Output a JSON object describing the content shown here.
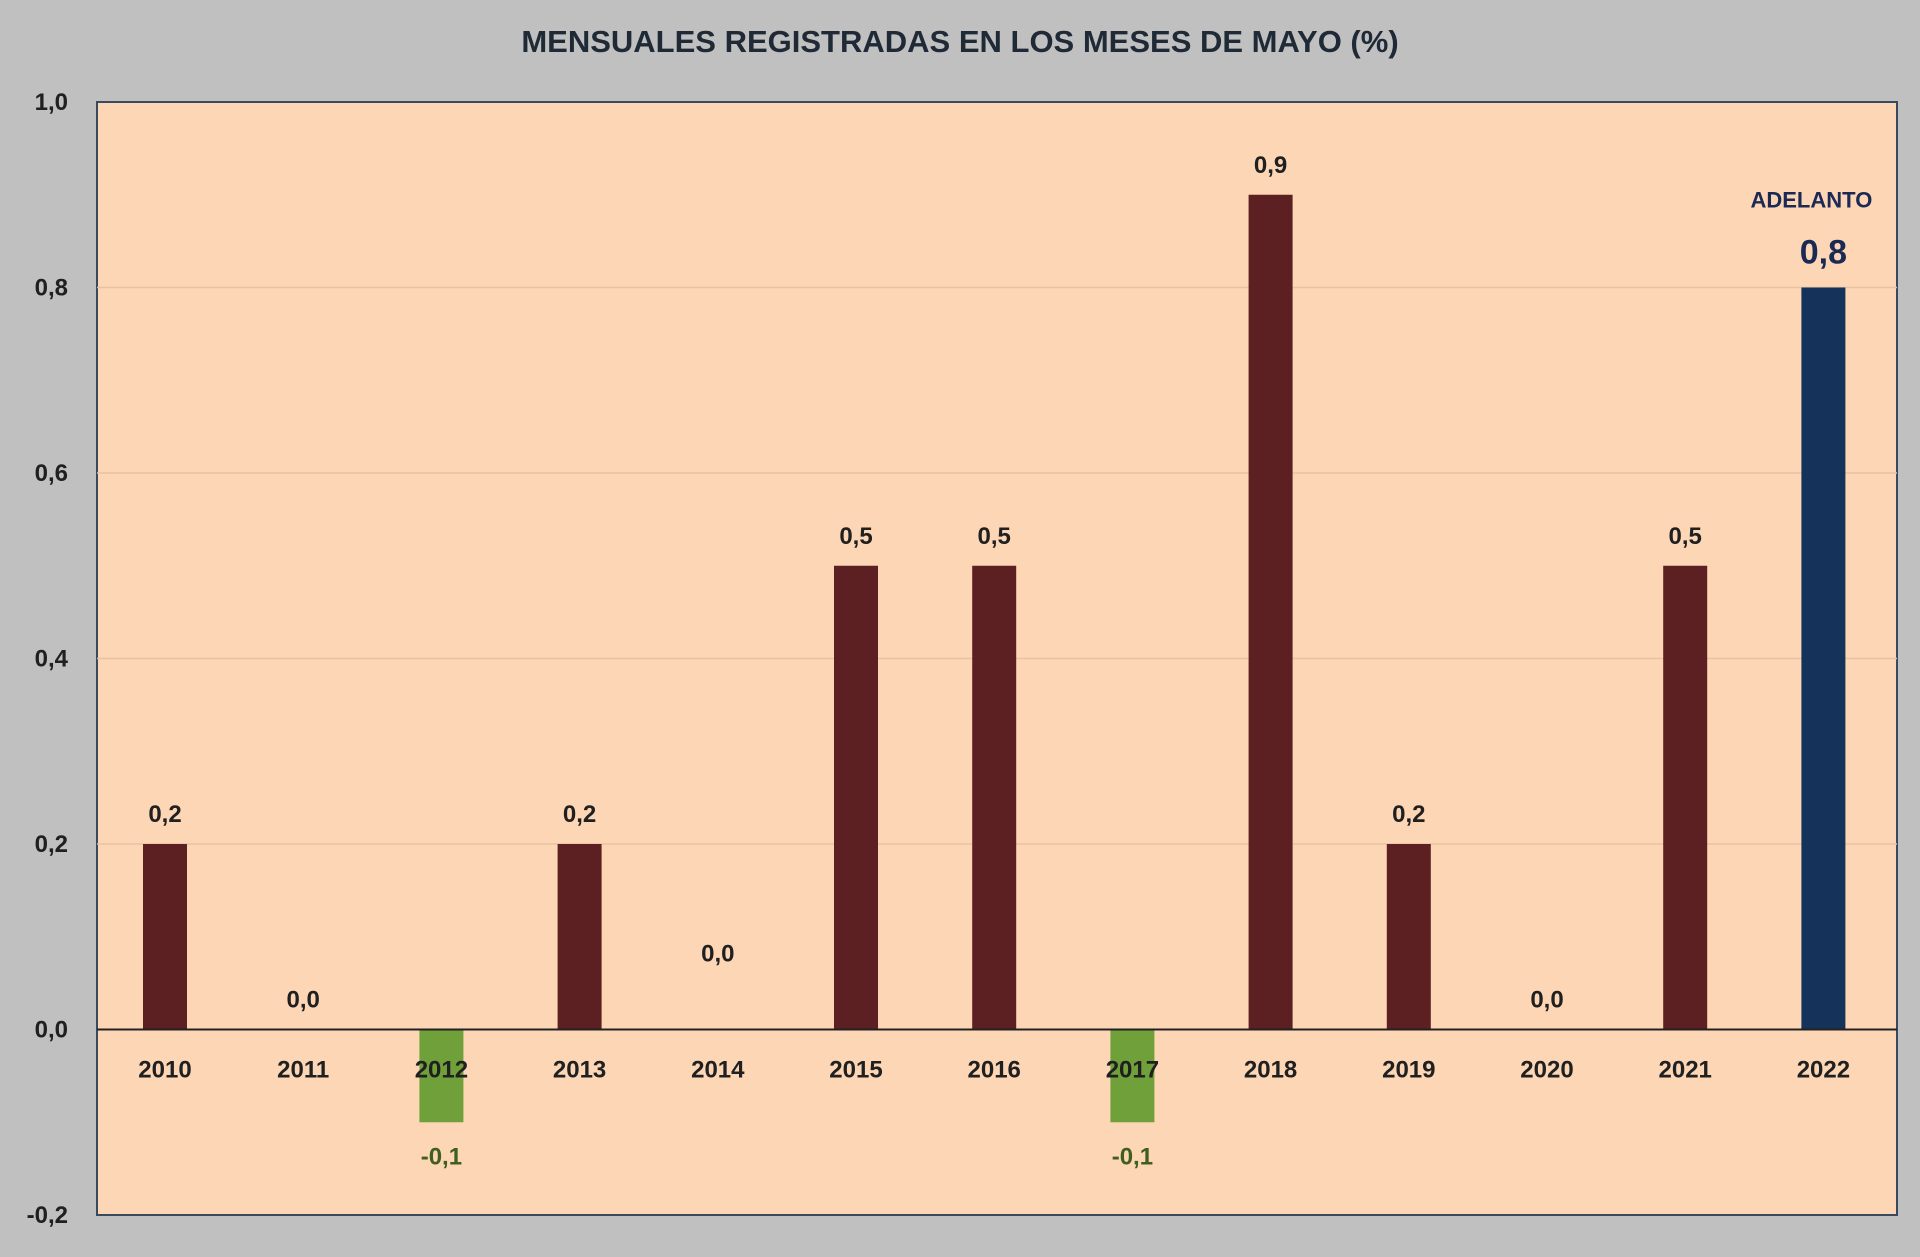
{
  "chart_data": {
    "type": "bar",
    "title": "MENSUALES REGISTRADAS EN LOS MESES DE MAYO (%)",
    "xlabel": "",
    "ylabel": "",
    "categories": [
      "2010",
      "2011",
      "2012",
      "2013",
      "2014",
      "2015",
      "2016",
      "2017",
      "2018",
      "2019",
      "2020",
      "2021",
      "2022"
    ],
    "values": [
      0.2,
      0.0,
      -0.1,
      0.2,
      0.0,
      0.5,
      0.5,
      -0.1,
      0.9,
      0.2,
      0.0,
      0.5,
      0.8
    ],
    "value_labels": [
      "0,2",
      "0,0",
      "-0,1",
      "0,2",
      "0,0",
      "0,5",
      "0,5",
      "-0,1",
      "0,9",
      "0,2",
      "0,0",
      "0,5",
      "0,8"
    ],
    "ylim": [
      -0.2,
      1.0
    ],
    "yticks": [
      -0.2,
      0.0,
      0.2,
      0.4,
      0.6,
      0.8,
      1.0
    ],
    "ytick_labels": [
      "-0,2",
      "0,0",
      "0,2",
      "0,4",
      "0,6",
      "0,8",
      "1,0"
    ],
    "grid": true,
    "legend": "none",
    "highlight": {
      "category": "2022",
      "annotation": "ADELANTO"
    },
    "colors": {
      "positive": "#5c1f22",
      "negative": "#70a03a",
      "highlight": "#14325a",
      "plot_bg": "#fcd6b5",
      "frame_bg": "#c0c0c0",
      "negative_label": "#3f5f1e",
      "highlight_label": "#1a2a55"
    }
  }
}
